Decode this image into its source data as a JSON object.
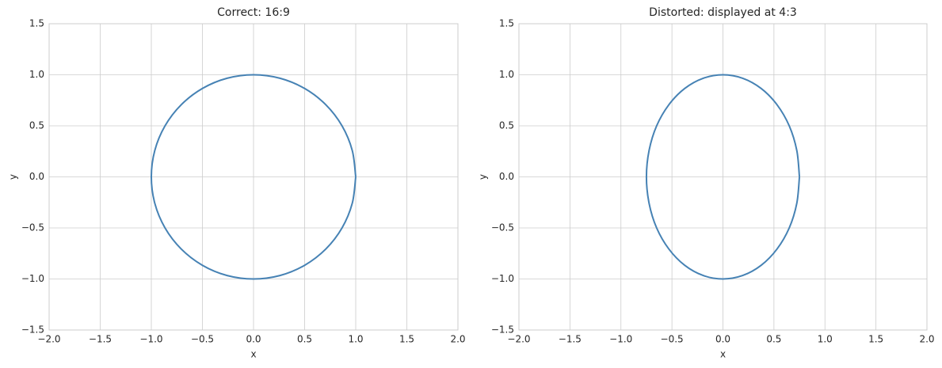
{
  "chart_data": [
    {
      "type": "line",
      "title": "Correct: 16:9",
      "xlabel": "x",
      "ylabel": "y",
      "x": [
        1,
        0.966,
        0.866,
        0.707,
        0.5,
        0.259,
        0,
        -0.259,
        -0.5,
        -0.707,
        -0.866,
        -0.966,
        -1,
        -0.966,
        -0.866,
        -0.707,
        -0.5,
        -0.259,
        0,
        0.259,
        0.5,
        0.707,
        0.866,
        0.966,
        1
      ],
      "series": [
        {
          "color": "#4682b4",
          "values": [
            0,
            0.259,
            0.5,
            0.707,
            0.866,
            0.966,
            1,
            0.966,
            0.866,
            0.707,
            0.5,
            0.259,
            0,
            -0.259,
            -0.5,
            -0.707,
            -0.866,
            -0.966,
            -1,
            -0.966,
            -0.866,
            -0.707,
            -0.5,
            -0.259,
            0
          ]
        }
      ],
      "xlim": [
        -2,
        2
      ],
      "ylim": [
        -1.5,
        1.5
      ],
      "xticks": [
        {
          "value": -2,
          "label": "−2.0"
        },
        {
          "value": -1.5,
          "label": "−1.5"
        },
        {
          "value": -1,
          "label": "−1.0"
        },
        {
          "value": -0.5,
          "label": "−0.5"
        },
        {
          "value": 0,
          "label": "0.0"
        },
        0.5,
        {
          "value": 1,
          "label": "1.0"
        },
        1.5,
        {
          "value": 2,
          "label": "2.0"
        }
      ],
      "yticks": [
        {
          "value": -1.5,
          "label": "−1.5"
        },
        {
          "value": -1,
          "label": "−1.0"
        },
        {
          "value": -0.5,
          "label": "−0.5"
        },
        {
          "value": 0,
          "label": "0.0"
        },
        0.5,
        {
          "value": 1,
          "label": "1.0"
        },
        1.5
      ],
      "grid": true
    },
    {
      "type": "line",
      "title": "Distorted: displayed at 4:3",
      "xlabel": "x",
      "ylabel": "y",
      "x": [
        0.75,
        0.724,
        0.65,
        0.53,
        0.375,
        0.194,
        0,
        -0.194,
        -0.375,
        -0.53,
        -0.65,
        -0.724,
        -0.75,
        -0.724,
        -0.65,
        -0.53,
        -0.375,
        -0.194,
        0,
        0.194,
        0.375,
        0.53,
        0.65,
        0.724,
        0.75
      ],
      "series": [
        {
          "color": "#4682b4",
          "values": [
            0,
            0.259,
            0.5,
            0.707,
            0.866,
            0.966,
            1,
            0.966,
            0.866,
            0.707,
            0.5,
            0.259,
            0,
            -0.259,
            -0.5,
            -0.707,
            -0.866,
            -0.966,
            -1,
            -0.966,
            -0.866,
            -0.707,
            -0.5,
            -0.259,
            0
          ]
        }
      ],
      "xlim": [
        -2,
        2
      ],
      "ylim": [
        -1.5,
        1.5
      ],
      "xticks": [
        {
          "value": -2,
          "label": "−2.0"
        },
        {
          "value": -1.5,
          "label": "−1.5"
        },
        {
          "value": -1,
          "label": "−1.0"
        },
        {
          "value": -0.5,
          "label": "−0.5"
        },
        {
          "value": 0,
          "label": "0.0"
        },
        0.5,
        {
          "value": 1,
          "label": "1.0"
        },
        1.5,
        {
          "value": 2,
          "label": "2.0"
        }
      ],
      "yticks": [
        {
          "value": -1.5,
          "label": "−1.5"
        },
        {
          "value": -1,
          "label": "−1.0"
        },
        {
          "value": -0.5,
          "label": "−0.5"
        },
        {
          "value": 0,
          "label": "0.0"
        },
        0.5,
        {
          "value": 1,
          "label": "1.0"
        },
        1.5
      ],
      "grid": true
    }
  ]
}
